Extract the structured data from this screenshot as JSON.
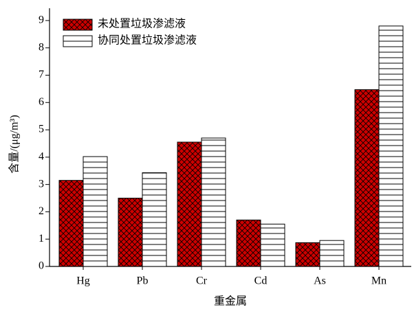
{
  "chart_data": {
    "type": "bar",
    "x_label": "重金属",
    "y_label": "含量/(μg/m³)",
    "categories": [
      "Hg",
      "Pb",
      "Cr",
      "Cd",
      "As",
      "Mn"
    ],
    "series": [
      {
        "name": "未处置垃圾渗滤液",
        "color": "#cc0000",
        "hatch": "crosshatch",
        "values": [
          3.15,
          2.5,
          4.55,
          1.7,
          0.87,
          6.47
        ]
      },
      {
        "name": "协同处置垃圾渗滤液",
        "color": "#ffffff",
        "hatch": "horizontal",
        "values": [
          4.02,
          3.43,
          4.7,
          1.55,
          0.95,
          8.8
        ]
      }
    ],
    "ylim": [
      0,
      9.45
    ],
    "yticks": [
      0,
      1,
      2,
      3,
      4,
      5,
      6,
      7,
      8,
      9
    ],
    "legend": "upper-left"
  }
}
